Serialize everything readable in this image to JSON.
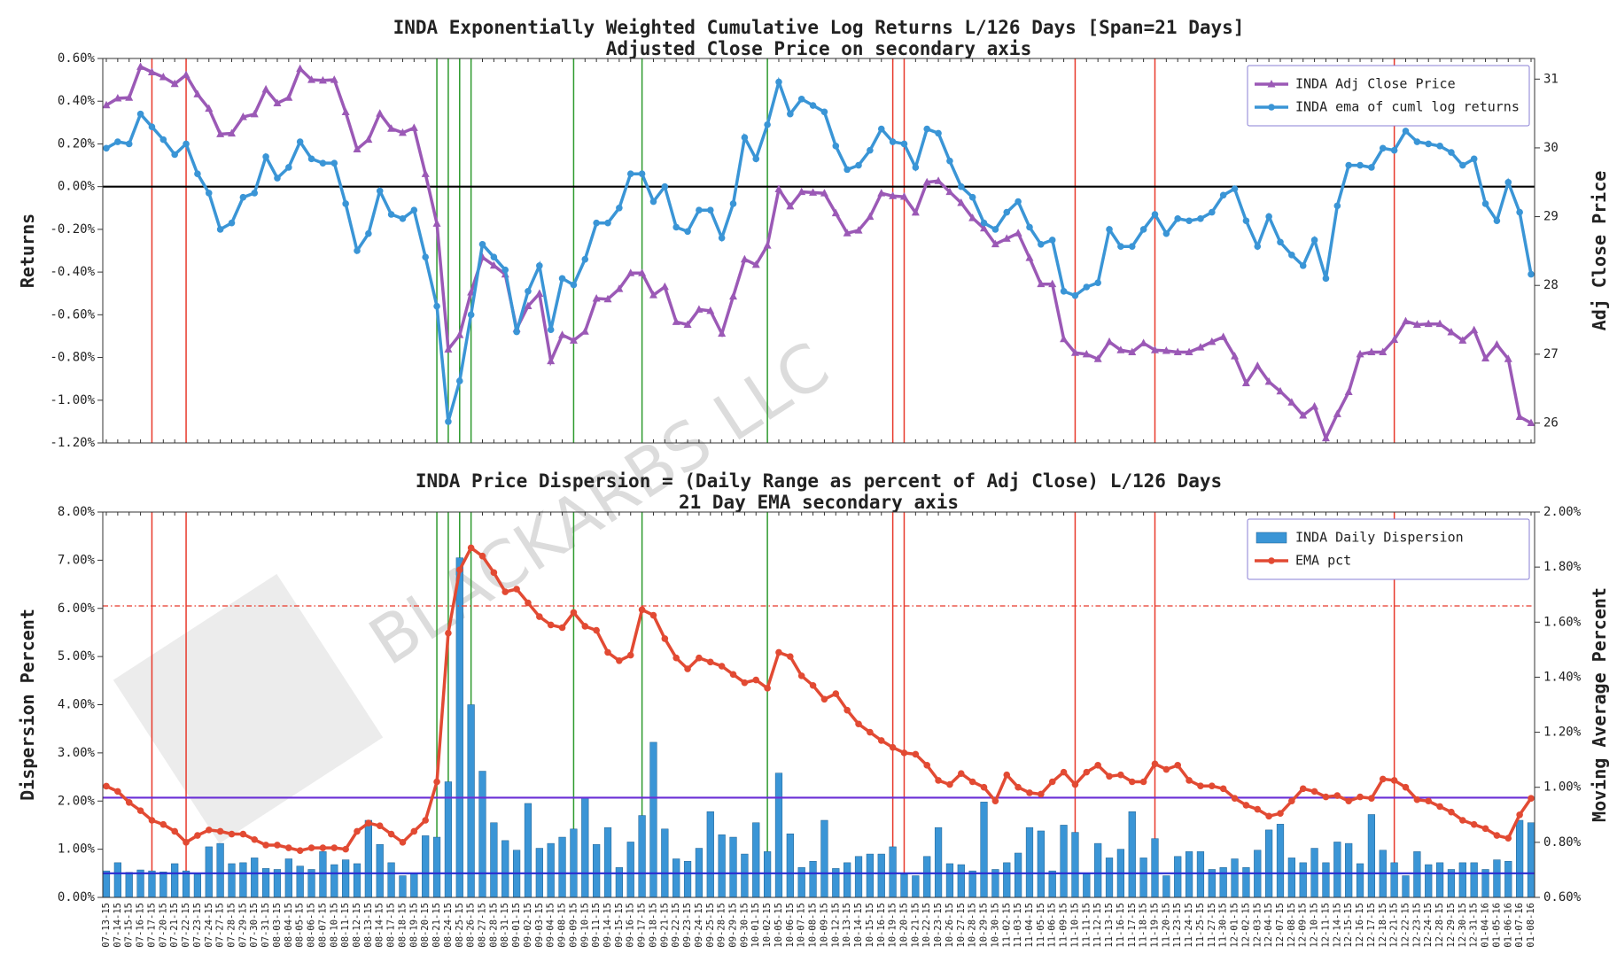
{
  "chart_data": [
    {
      "type": "line",
      "title": "INDA Exponentially Weighted Cumulative Log Returns L/126 Days [Span=21 Days]",
      "subtitle": "Adjusted Close Price on secondary axis",
      "y_label": "Returns",
      "y2_label": "Adj Close Price",
      "ylim": [
        -1.2,
        0.6
      ],
      "yticks": [
        {
          "value": -1.2,
          "label": "-1.20%"
        },
        {
          "value": -1.0,
          "label": "-1.00%"
        },
        {
          "value": -0.8,
          "label": "-0.80%"
        },
        {
          "value": -0.6,
          "label": "-0.60%"
        },
        {
          "value": -0.4,
          "label": "-0.40%"
        },
        {
          "value": -0.2,
          "label": "-0.20%"
        },
        {
          "value": 0,
          "label": "0.00%"
        },
        {
          "value": 0.2,
          "label": "0.20%"
        },
        {
          "value": 0.4,
          "label": "0.40%"
        },
        {
          "value": 0.6,
          "label": "0.60%"
        }
      ],
      "y2lim": [
        25.71,
        31.3
      ],
      "y2ticks": [
        26,
        27,
        28,
        29,
        30,
        31
      ],
      "legend": "upper right",
      "hlines": [
        {
          "value": 0,
          "color": "#000000",
          "style": "solid"
        }
      ],
      "vlines": [
        {
          "x": "07-17-15",
          "color": "#e8392b"
        },
        {
          "x": "07-22-15",
          "color": "#e8392b"
        },
        {
          "x": "08-21-15",
          "color": "#2e9a2e"
        },
        {
          "x": "08-24-15",
          "color": "#2e9a2e"
        },
        {
          "x": "08-25-15",
          "color": "#2e9a2e"
        },
        {
          "x": "08-26-15",
          "color": "#2e9a2e"
        },
        {
          "x": "09-09-15",
          "color": "#2e9a2e"
        },
        {
          "x": "09-17-15",
          "color": "#2e9a2e"
        },
        {
          "x": "10-02-15",
          "color": "#2e9a2e"
        },
        {
          "x": "10-19-15",
          "color": "#e8392b"
        },
        {
          "x": "10-20-15",
          "color": "#e8392b"
        },
        {
          "x": "11-10-15",
          "color": "#e8392b"
        },
        {
          "x": "11-19-15",
          "color": "#e8392b"
        },
        {
          "x": "12-21-15",
          "color": "#e8392b"
        }
      ],
      "series": [
        {
          "name": "INDA Adj Close Price",
          "type": "line",
          "marker": "triangle",
          "axis": "y2",
          "color": "#9b59b6",
          "values": [
            30.62,
            30.72,
            30.73,
            31.18,
            31.1,
            31.03,
            30.93,
            31.06,
            30.78,
            30.57,
            30.2,
            30.21,
            30.45,
            30.49,
            30.85,
            30.65,
            30.73,
            31.15,
            30.99,
            30.98,
            30.99,
            30.52,
            29.98,
            30.12,
            30.5,
            30.28,
            30.22,
            30.29,
            29.62,
            28.9,
            27.07,
            27.28,
            27.9,
            28.41,
            28.29,
            28.16,
            27.37,
            27.7,
            27.88,
            26.9,
            27.28,
            27.2,
            27.33,
            27.81,
            27.8,
            27.95,
            28.18,
            28.18,
            27.86,
            27.98,
            27.47,
            27.43,
            27.65,
            27.63,
            27.3,
            27.84,
            28.38,
            28.3,
            28.58,
            29.4,
            29.15,
            29.36,
            29.35,
            29.34,
            29.05,
            28.76,
            28.8,
            29.0,
            29.34,
            29.3,
            29.29,
            29.06,
            29.5,
            29.52,
            29.36,
            29.2,
            28.98,
            28.83,
            28.6,
            28.68,
            28.76,
            28.4,
            28.02,
            28.02,
            27.22,
            27.02,
            27.0,
            26.93,
            27.18,
            27.06,
            27.03,
            27.16,
            27.06,
            27.05,
            27.03,
            27.03,
            27.1,
            27.18,
            27.25,
            26.97,
            26.58,
            26.83,
            26.6,
            26.46,
            26.3,
            26.11,
            26.24,
            25.78,
            26.13,
            26.45,
            27.0,
            27.03,
            27.03,
            27.21,
            27.48,
            27.43,
            27.44,
            27.44,
            27.32,
            27.2,
            27.35,
            26.94,
            27.14,
            26.93,
            26.09,
            26.0
          ]
        },
        {
          "name": "INDA ema of cuml log returns",
          "type": "line",
          "marker": "circle",
          "axis": "y",
          "color": "#3a95d6",
          "values": [
            0.18,
            0.21,
            0.2,
            0.34,
            0.28,
            0.22,
            0.15,
            0.2,
            0.06,
            -0.03,
            -0.2,
            -0.17,
            -0.05,
            -0.03,
            0.14,
            0.04,
            0.09,
            0.21,
            0.13,
            0.11,
            0.11,
            -0.08,
            -0.3,
            -0.22,
            -0.02,
            -0.13,
            -0.15,
            -0.11,
            -0.33,
            -0.56,
            -1.1,
            -0.91,
            -0.6,
            -0.27,
            -0.33,
            -0.39,
            -0.68,
            -0.49,
            -0.37,
            -0.67,
            -0.43,
            -0.46,
            -0.34,
            -0.17,
            -0.17,
            -0.1,
            0.06,
            0.06,
            -0.07,
            0.0,
            -0.19,
            -0.21,
            -0.11,
            -0.11,
            -0.24,
            -0.08,
            0.23,
            0.13,
            0.29,
            0.49,
            0.34,
            0.41,
            0.38,
            0.35,
            0.19,
            0.08,
            0.1,
            0.17,
            0.27,
            0.21,
            0.2,
            0.09,
            0.27,
            0.25,
            0.12,
            0.0,
            -0.05,
            -0.17,
            -0.2,
            -0.12,
            -0.07,
            -0.19,
            -0.27,
            -0.25,
            -0.49,
            -0.51,
            -0.47,
            -0.45,
            -0.2,
            -0.28,
            -0.28,
            -0.2,
            -0.13,
            -0.22,
            -0.15,
            -0.16,
            -0.15,
            -0.12,
            -0.04,
            -0.01,
            -0.16,
            -0.28,
            -0.14,
            -0.26,
            -0.32,
            -0.37,
            -0.25,
            -0.43,
            -0.09,
            0.1,
            0.1,
            0.09,
            0.18,
            0.17,
            0.26,
            0.21,
            0.2,
            0.19,
            0.16,
            0.1,
            0.13,
            -0.08,
            -0.16,
            0.02,
            -0.12,
            -0.41
          ]
        }
      ]
    },
    {
      "type": "bar",
      "title": "INDA Price Dispersion = (Daily Range as percent of Adj Close) L/126 Days",
      "subtitle": "21 Day EMA secondary axis",
      "y_label": "Dispersion Percent",
      "y2_label": "Moving Average Percent",
      "watermark": "BLACKARBS LLC",
      "categories": [
        "07-13-15",
        "07-14-15",
        "07-15-15",
        "07-16-15",
        "07-17-15",
        "07-20-15",
        "07-21-15",
        "07-22-15",
        "07-23-15",
        "07-24-15",
        "07-27-15",
        "07-28-15",
        "07-29-15",
        "07-30-15",
        "07-31-15",
        "08-03-15",
        "08-04-15",
        "08-05-15",
        "08-06-15",
        "08-07-15",
        "08-10-15",
        "08-11-15",
        "08-12-15",
        "08-13-15",
        "08-14-15",
        "08-17-15",
        "08-18-15",
        "08-19-15",
        "08-20-15",
        "08-21-15",
        "08-24-15",
        "08-25-15",
        "08-26-15",
        "08-27-15",
        "08-28-15",
        "08-31-15",
        "09-01-15",
        "09-02-15",
        "09-03-15",
        "09-04-15",
        "09-08-15",
        "09-09-15",
        "09-10-15",
        "09-11-15",
        "09-14-15",
        "09-15-15",
        "09-16-15",
        "09-17-15",
        "09-18-15",
        "09-21-15",
        "09-22-15",
        "09-23-15",
        "09-24-15",
        "09-25-15",
        "09-28-15",
        "09-29-15",
        "09-30-15",
        "10-01-15",
        "10-02-15",
        "10-05-15",
        "10-06-15",
        "10-07-15",
        "10-08-15",
        "10-09-15",
        "10-12-15",
        "10-13-15",
        "10-14-15",
        "10-15-15",
        "10-16-15",
        "10-19-15",
        "10-20-15",
        "10-21-15",
        "10-22-15",
        "10-23-15",
        "10-26-15",
        "10-27-15",
        "10-28-15",
        "10-29-15",
        "10-30-15",
        "11-02-15",
        "11-03-15",
        "11-04-15",
        "11-05-15",
        "11-06-15",
        "11-09-15",
        "11-10-15",
        "11-11-15",
        "11-12-15",
        "11-13-15",
        "11-16-15",
        "11-17-15",
        "11-18-15",
        "11-19-15",
        "11-20-15",
        "11-23-15",
        "11-24-15",
        "11-25-15",
        "11-27-15",
        "11-30-15",
        "12-01-15",
        "12-02-15",
        "12-03-15",
        "12-04-15",
        "12-07-15",
        "12-08-15",
        "12-09-15",
        "12-10-15",
        "12-11-15",
        "12-14-15",
        "12-15-15",
        "12-16-15",
        "12-17-15",
        "12-18-15",
        "12-21-15",
        "12-22-15",
        "12-23-15",
        "12-24-15",
        "12-28-15",
        "12-29-15",
        "12-30-15",
        "12-31-15",
        "01-04-16",
        "01-05-16",
        "01-06-16",
        "01-07-16",
        "01-08-16"
      ],
      "ylim": [
        0,
        8
      ],
      "yticks": [
        {
          "value": 0,
          "label": "0.00%"
        },
        {
          "value": 1,
          "label": "1.00%"
        },
        {
          "value": 2,
          "label": "2.00%"
        },
        {
          "value": 3,
          "label": "3.00%"
        },
        {
          "value": 4,
          "label": "4.00%"
        },
        {
          "value": 5,
          "label": "5.00%"
        },
        {
          "value": 6,
          "label": "6.00%"
        },
        {
          "value": 7,
          "label": "7.00%"
        },
        {
          "value": 8,
          "label": "8.00%"
        }
      ],
      "y2lim": [
        0.6,
        2.0
      ],
      "y2ticks": [
        {
          "value": 0.6,
          "label": "0.60%"
        },
        {
          "value": 0.8,
          "label": "0.80%"
        },
        {
          "value": 1.0,
          "label": "1.00%"
        },
        {
          "value": 1.2,
          "label": "1.20%"
        },
        {
          "value": 1.4,
          "label": "1.40%"
        },
        {
          "value": 1.6,
          "label": "1.60%"
        },
        {
          "value": 1.8,
          "label": "1.80%"
        },
        {
          "value": 2.0,
          "label": "2.00%"
        }
      ],
      "legend": "upper right",
      "hlines": [
        {
          "value": 6.05,
          "color": "#e8392b",
          "style": "dashdot"
        },
        {
          "value": 2.07,
          "color": "#6a2fd6",
          "style": "solid"
        },
        {
          "value": 0.5,
          "color": "#2b2bd0",
          "style": "solid"
        }
      ],
      "vlines": [
        {
          "x": "07-17-15",
          "color": "#e8392b"
        },
        {
          "x": "07-22-15",
          "color": "#e8392b"
        },
        {
          "x": "08-21-15",
          "color": "#2e9a2e"
        },
        {
          "x": "08-24-15",
          "color": "#2e9a2e"
        },
        {
          "x": "08-25-15",
          "color": "#2e9a2e"
        },
        {
          "x": "08-26-15",
          "color": "#2e9a2e"
        },
        {
          "x": "09-09-15",
          "color": "#2e9a2e"
        },
        {
          "x": "09-17-15",
          "color": "#2e9a2e"
        },
        {
          "x": "10-02-15",
          "color": "#2e9a2e"
        },
        {
          "x": "10-19-15",
          "color": "#e8392b"
        },
        {
          "x": "10-20-15",
          "color": "#e8392b"
        },
        {
          "x": "11-10-15",
          "color": "#e8392b"
        },
        {
          "x": "11-19-15",
          "color": "#e8392b"
        },
        {
          "x": "12-21-15",
          "color": "#e8392b"
        }
      ],
      "series": [
        {
          "name": "INDA Daily Dispersion",
          "type": "bar",
          "axis": "y",
          "color": "#3a95d6",
          "values": [
            0.55,
            0.72,
            0.52,
            0.57,
            0.55,
            0.53,
            0.7,
            0.55,
            0.48,
            1.05,
            1.12,
            0.7,
            0.72,
            0.82,
            0.6,
            0.58,
            0.8,
            0.65,
            0.58,
            0.95,
            0.68,
            0.78,
            0.7,
            1.6,
            1.1,
            0.72,
            0.45,
            0.5,
            1.28,
            1.25,
            2.4,
            7.05,
            4.0,
            2.62,
            1.55,
            1.18,
            0.98,
            1.95,
            1.02,
            1.12,
            1.25,
            1.42,
            2.08,
            1.1,
            1.45,
            0.62,
            1.15,
            1.7,
            3.22,
            1.42,
            0.8,
            0.75,
            1.02,
            1.78,
            1.3,
            1.25,
            0.9,
            1.55,
            0.95,
            2.58,
            1.32,
            0.62,
            0.75,
            1.6,
            0.6,
            0.72,
            0.85,
            0.9,
            0.9,
            1.05,
            0.48,
            0.45,
            0.85,
            1.45,
            0.7,
            0.68,
            0.55,
            1.98,
            0.58,
            0.72,
            0.92,
            1.45,
            1.38,
            0.55,
            1.5,
            1.35,
            0.5,
            1.12,
            0.82,
            1.0,
            1.78,
            0.82,
            1.22,
            0.45,
            0.85,
            0.95,
            0.95,
            0.58,
            0.62,
            0.8,
            0.62,
            0.98,
            1.4,
            1.52,
            0.82,
            0.72,
            1.02,
            0.72,
            1.15,
            1.12,
            0.7,
            1.72,
            0.98,
            0.72,
            0.45,
            0.95,
            0.68,
            0.72,
            0.58,
            0.72,
            0.72,
            0.58,
            0.78,
            0.75,
            1.6,
            1.55
          ]
        },
        {
          "name": "EMA pct",
          "type": "line",
          "marker": "circle",
          "axis": "y2",
          "color": "#e24a33",
          "values": [
            1.004,
            0.985,
            0.945,
            0.915,
            0.88,
            0.865,
            0.84,
            0.8,
            0.825,
            0.845,
            0.84,
            0.83,
            0.83,
            0.81,
            0.79,
            0.79,
            0.78,
            0.77,
            0.78,
            0.78,
            0.78,
            0.775,
            0.84,
            0.87,
            0.86,
            0.83,
            0.8,
            0.84,
            0.88,
            1.02,
            1.56,
            1.79,
            1.87,
            1.84,
            1.78,
            1.71,
            1.72,
            1.67,
            1.62,
            1.59,
            1.58,
            1.635,
            1.585,
            1.57,
            1.49,
            1.46,
            1.48,
            1.645,
            1.625,
            1.54,
            1.47,
            1.43,
            1.47,
            1.455,
            1.44,
            1.41,
            1.38,
            1.39,
            1.36,
            1.49,
            1.475,
            1.405,
            1.37,
            1.32,
            1.34,
            1.28,
            1.23,
            1.2,
            1.17,
            1.145,
            1.125,
            1.12,
            1.08,
            1.025,
            1.01,
            1.05,
            1.02,
            1.0,
            0.95,
            1.045,
            1.0,
            0.98,
            0.975,
            1.02,
            1.055,
            1.01,
            1.055,
            1.08,
            1.04,
            1.045,
            1.02,
            1.02,
            1.085,
            1.065,
            1.08,
            1.025,
            1.005,
            1.005,
            0.995,
            0.96,
            0.935,
            0.92,
            0.895,
            0.905,
            0.95,
            0.995,
            0.985,
            0.965,
            0.97,
            0.95,
            0.965,
            0.96,
            1.03,
            1.025,
            1.0,
            0.955,
            0.95,
            0.93,
            0.91,
            0.88,
            0.865,
            0.85,
            0.825,
            0.815,
            0.9,
            0.96
          ]
        }
      ]
    }
  ]
}
